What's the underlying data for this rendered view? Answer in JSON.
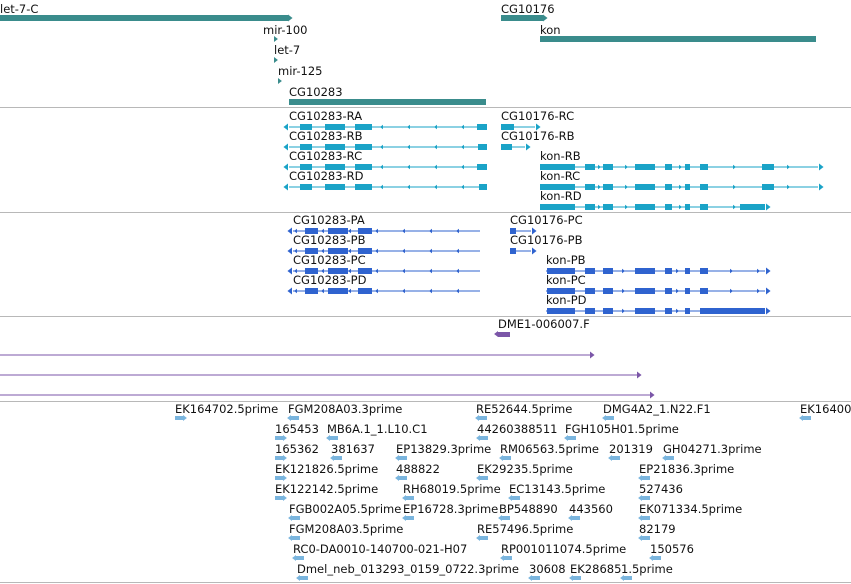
{
  "colors": {
    "gene": "#3a8c8c",
    "transcript_flybase": "#1aa3c7",
    "transcript_protein": "#2f63cf",
    "alignment": "#7b56a8",
    "est": "#7ab5de",
    "divider": "#b8b8b8"
  },
  "tracks": {
    "genes": {
      "labels": [
        "let-7-C",
        "mir-100",
        "let-7",
        "mir-125",
        "CG10283",
        "CG10176",
        "kon"
      ]
    },
    "transcripts": {
      "labels": [
        "CG10283-RA",
        "CG10283-RB",
        "CG10283-RC",
        "CG10283-RD",
        "CG10176-RC",
        "CG10176-RB",
        "kon-RB",
        "kon-RC",
        "kon-RD"
      ]
    },
    "proteins": {
      "labels": [
        "CG10283-PA",
        "CG10283-PB",
        "CG10283-PC",
        "CG10283-PD",
        "CG10176-PC",
        "CG10176-PB",
        "kon-PB",
        "kon-PC",
        "kon-PD"
      ]
    },
    "alignments": {
      "labels": [
        "DME1-006007.F"
      ]
    },
    "ests": {
      "labels": [
        "EK164702.5prime",
        "FGM208A03.3prime",
        "RE52644.5prime",
        "DMG4A2_1.N22.F1",
        "EK16400",
        "165453",
        "MB6A.1_1.L10.C1",
        "44260388511",
        "FGH105H01.5prime",
        "165362",
        "381637",
        "EP13829.3prime",
        "RM06563.5prime",
        "201319",
        "GH04271.3prime",
        "EK121826.5prime",
        "488822",
        "EK29235.5prime",
        "EP21836.3prime",
        "EK122142.5prime",
        "RH68019.5prime",
        "EC13143.5prime",
        "527436",
        "FGB002A05.5prime",
        "EP16728.3prime",
        "BP548890",
        "443560",
        "EK071334.5prime",
        "FGM208A03.5prime",
        "RE57496.5prime",
        "82179",
        "RC0-DA0010-140700-021-H07",
        "RP001011074.5prime",
        "150576",
        "Dmel_neb_013293_0159_0722.3prime",
        "30608",
        "EK28685",
        "1.5prime"
      ]
    }
  }
}
